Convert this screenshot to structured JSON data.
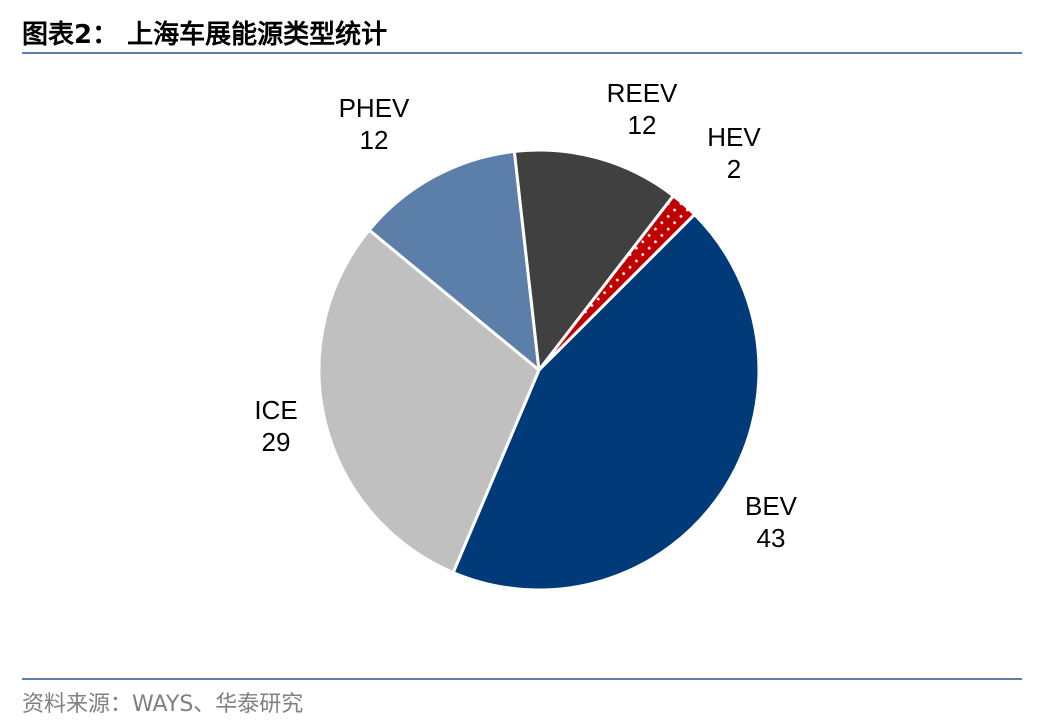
{
  "header": {
    "title": "图表2：  上海车展能源类型统计"
  },
  "footer": {
    "source": "资料来源：WAYS、华泰研究"
  },
  "chart_data": {
    "type": "pie",
    "start_angle_deg": 45,
    "direction": "clockwise",
    "slices": [
      {
        "label": "BEV",
        "value": 43,
        "color": "#003a78",
        "pattern": null
      },
      {
        "label": "ICE",
        "value": 29,
        "color": "#c0c0c0",
        "pattern": null
      },
      {
        "label": "PHEV",
        "value": 12,
        "color": "#5b7fa8",
        "pattern": null
      },
      {
        "label": "REEV",
        "value": 12,
        "color": "#404040",
        "pattern": null
      },
      {
        "label": "HEV",
        "value": 2,
        "color": "#c00000",
        "pattern": "white-dots"
      }
    ]
  }
}
